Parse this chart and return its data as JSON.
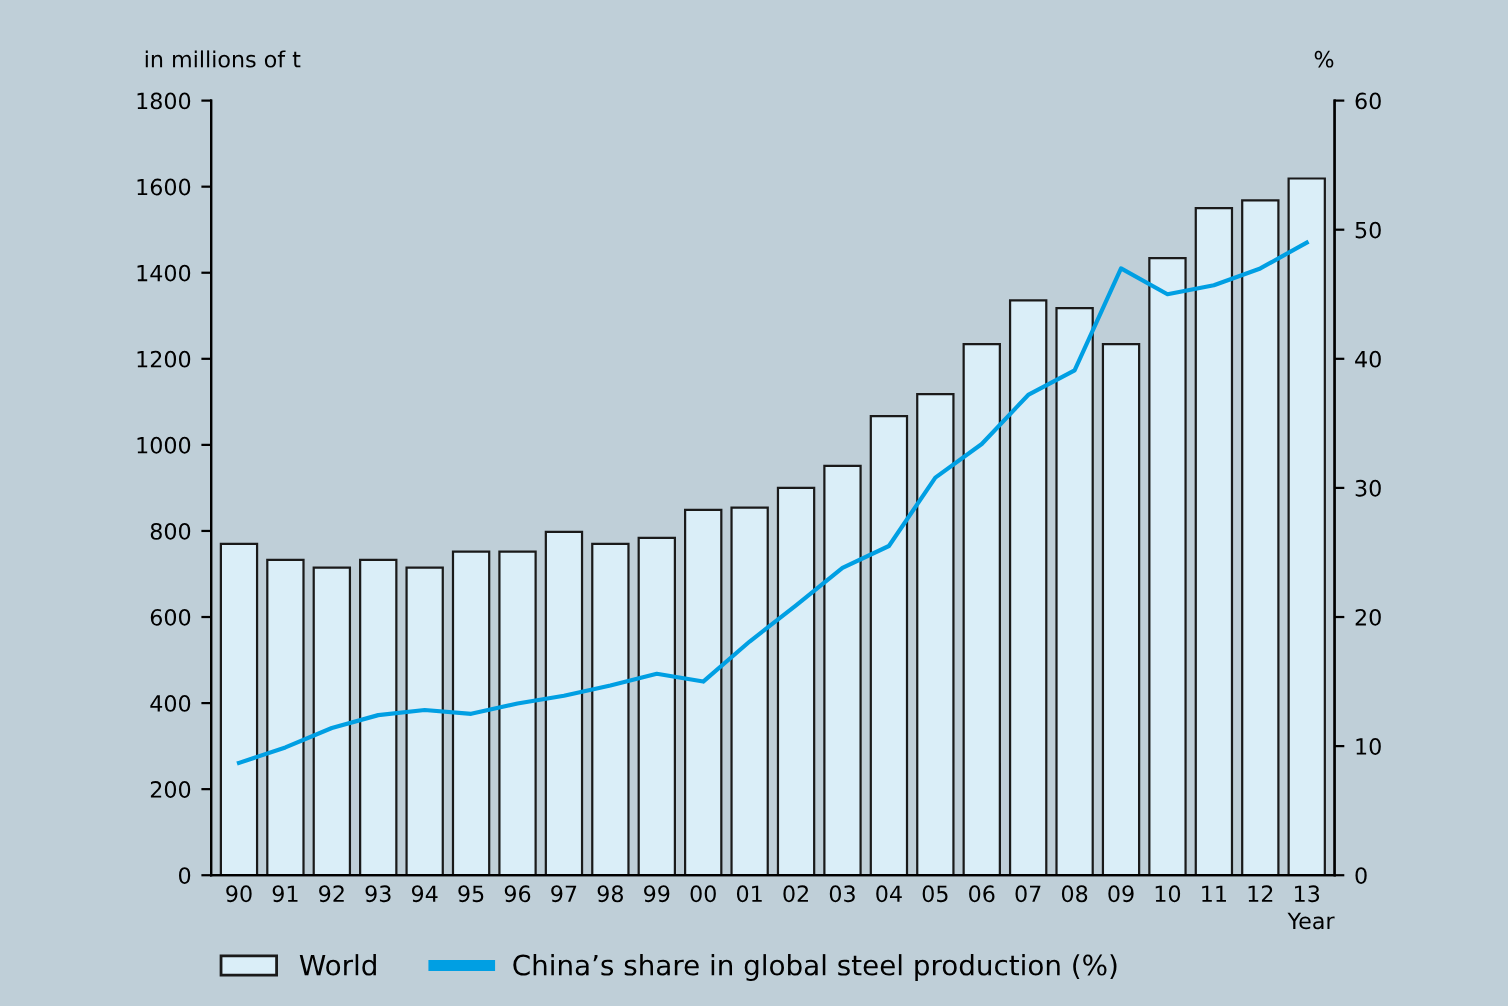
{
  "chart_data": {
    "type": "bar",
    "categories": [
      "90",
      "91",
      "92",
      "93",
      "94",
      "95",
      "96",
      "97",
      "98",
      "99",
      "00",
      "01",
      "02",
      "03",
      "04",
      "05",
      "06",
      "07",
      "08",
      "09",
      "10",
      "11",
      "12",
      "13"
    ],
    "series": [
      {
        "name": "World",
        "color": "#daeef8",
        "values": [
          770,
          733,
          715,
          733,
          715,
          752,
          752,
          798,
          770,
          784,
          849,
          854,
          900,
          951,
          1067,
          1118,
          1234,
          1336,
          1318,
          1234,
          1434,
          1550,
          1568,
          1619
        ]
      },
      {
        "name": "China’s share in global steel production (%)",
        "type": "line",
        "axis": "y2",
        "color": "#009fe3",
        "values": [
          8.7,
          9.9,
          11.4,
          12.4,
          12.8,
          12.5,
          13.3,
          13.9,
          14.7,
          15.6,
          15.0,
          18.1,
          20.9,
          23.8,
          25.5,
          30.8,
          33.4,
          37.2,
          39.1,
          47.0,
          45.0,
          45.7,
          47.0,
          49.0
        ]
      }
    ],
    "xlabel": "Year",
    "ylabel": "in millions of t",
    "y2label": "%",
    "ylim": [
      0,
      1800
    ],
    "yticks": [
      0,
      200,
      400,
      600,
      800,
      1000,
      1200,
      1400,
      1600,
      1800
    ],
    "y2lim": [
      0,
      60
    ],
    "y2ticks": [
      0,
      10,
      20,
      30,
      40,
      50,
      60
    ],
    "grid": false,
    "legend": "bottom",
    "marker": "none",
    "line_style": "solid"
  }
}
